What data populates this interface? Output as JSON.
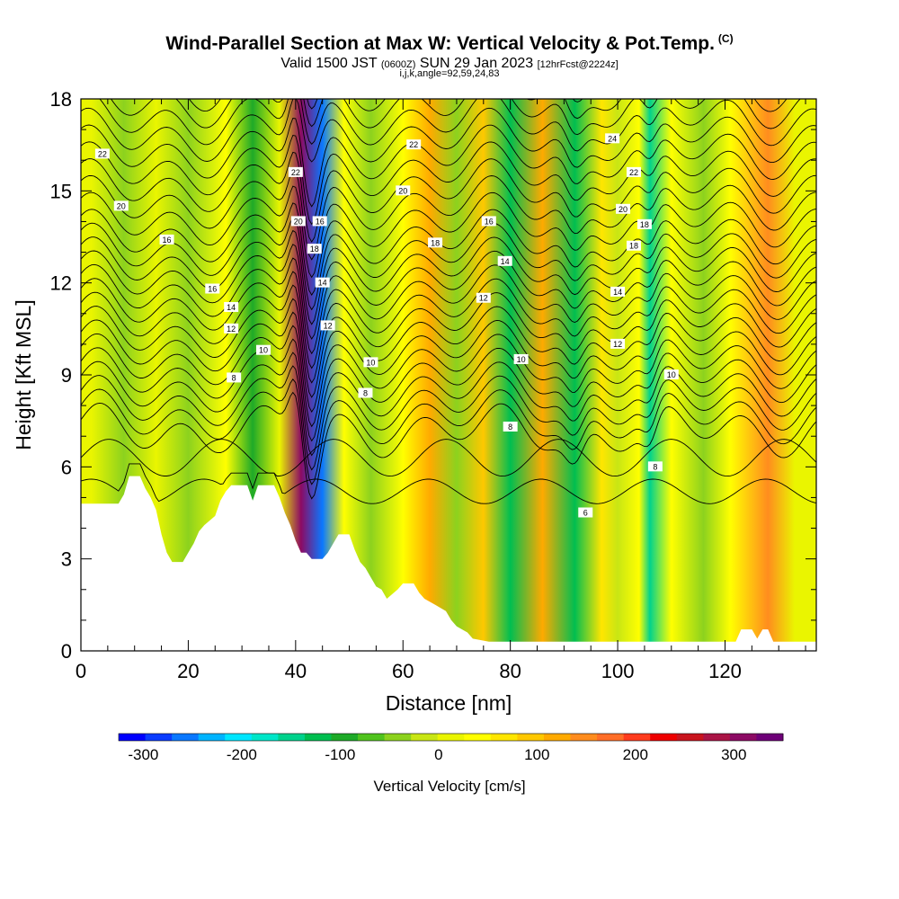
{
  "header": {
    "title": "Wind-Parallel Section at Max W: Vertical Velocity & Pot.Temp.",
    "title_tag": "(C)",
    "subtitle_main": "Valid 1500 JST",
    "subtitle_utc": "(0600Z)",
    "subtitle_date": "SUN 29 Jan 2023",
    "subtitle_fcst": "[12hrFcst@2224z]",
    "indices": "i,j,k,angle=92,59,24,83"
  },
  "chart_data": {
    "type": "heatmap",
    "title": "Wind-Parallel Section at Max W: Vertical Velocity & Pot.Temp.",
    "xlabel": "Distance [nm]",
    "ylabel": "Height [Kft MSL]",
    "xlim": [
      0,
      137
    ],
    "ylim": [
      0,
      18
    ],
    "xticks": [
      0,
      20,
      40,
      60,
      80,
      100,
      120
    ],
    "yticks": [
      0,
      3,
      6,
      9,
      12,
      15,
      18
    ],
    "colorbar": {
      "label": "Vertical Velocity [cm/s]",
      "ticks": [
        -300,
        -200,
        -100,
        0,
        100,
        200,
        300
      ],
      "range": [
        -325,
        350
      ],
      "colors": [
        "#0000ff",
        "#0a3cff",
        "#0a78ff",
        "#00b4ff",
        "#00e6ff",
        "#00e6c8",
        "#00d28c",
        "#00be50",
        "#1eaa28",
        "#50c31e",
        "#8cd21e",
        "#c8e614",
        "#eaf500",
        "#ffff00",
        "#ffe600",
        "#ffc800",
        "#ffaa00",
        "#ff8c1e",
        "#ff6e28",
        "#ff3c1e",
        "#ee0000",
        "#c8141e",
        "#aa1446",
        "#8c0a64",
        "#6e0078"
      ]
    },
    "velocity_bands": [
      {
        "x": 2,
        "w": 0
      },
      {
        "x": 8,
        "w": -40
      },
      {
        "x": 14,
        "w": 20
      },
      {
        "x": 20,
        "w": -30
      },
      {
        "x": 27,
        "w": 40
      },
      {
        "x": 32,
        "w": -90
      },
      {
        "x": 37,
        "w": 20
      },
      {
        "x": 41,
        "w": 310
      },
      {
        "x": 45,
        "w": -260
      },
      {
        "x": 49,
        "w": 30
      },
      {
        "x": 54,
        "w": -40
      },
      {
        "x": 60,
        "w": 40
      },
      {
        "x": 65,
        "w": 120
      },
      {
        "x": 70,
        "w": -50
      },
      {
        "x": 75,
        "w": 80
      },
      {
        "x": 80,
        "w": -110
      },
      {
        "x": 86,
        "w": 110
      },
      {
        "x": 92,
        "w": -130
      },
      {
        "x": 97,
        "w": 60
      },
      {
        "x": 100,
        "w": -20
      },
      {
        "x": 104,
        "w": 40
      },
      {
        "x": 106,
        "w": -150
      },
      {
        "x": 110,
        "w": 40
      },
      {
        "x": 116,
        "w": -30
      },
      {
        "x": 121,
        "w": 30
      },
      {
        "x": 128,
        "w": 140
      },
      {
        "x": 133,
        "w": 20
      }
    ],
    "terrain": [
      [
        0,
        4.8
      ],
      [
        7,
        4.8
      ],
      [
        8,
        5.1
      ],
      [
        9,
        5.7
      ],
      [
        11,
        5.7
      ],
      [
        12,
        5.3
      ],
      [
        13,
        5.0
      ],
      [
        14,
        4.6
      ],
      [
        15,
        3.8
      ],
      [
        16,
        3.2
      ],
      [
        17,
        2.9
      ],
      [
        19,
        2.9
      ],
      [
        20,
        3.2
      ],
      [
        21,
        3.5
      ],
      [
        22,
        3.9
      ],
      [
        23,
        4.1
      ],
      [
        25,
        4.4
      ],
      [
        26,
        4.9
      ],
      [
        27,
        5.2
      ],
      [
        28,
        5.4
      ],
      [
        31,
        5.4
      ],
      [
        32,
        4.9
      ],
      [
        33,
        5.4
      ],
      [
        36,
        5.4
      ],
      [
        37,
        5.0
      ],
      [
        38,
        4.5
      ],
      [
        39,
        4.1
      ],
      [
        40,
        3.6
      ],
      [
        41,
        3.2
      ],
      [
        42,
        3.2
      ],
      [
        43,
        3.0
      ],
      [
        45,
        3.0
      ],
      [
        46,
        3.2
      ],
      [
        47,
        3.5
      ],
      [
        48,
        3.8
      ],
      [
        50,
        3.8
      ],
      [
        51,
        3.3
      ],
      [
        52,
        2.9
      ],
      [
        53,
        2.7
      ],
      [
        54,
        2.4
      ],
      [
        55,
        2.1
      ],
      [
        56,
        2.0
      ],
      [
        57,
        1.7
      ],
      [
        59,
        2.0
      ],
      [
        60,
        2.2
      ],
      [
        62,
        2.2
      ],
      [
        63,
        1.9
      ],
      [
        64,
        1.7
      ],
      [
        66,
        1.5
      ],
      [
        68,
        1.3
      ],
      [
        69,
        1.0
      ],
      [
        70,
        0.8
      ],
      [
        72,
        0.6
      ],
      [
        73,
        0.4
      ],
      [
        76,
        0.3
      ],
      [
        81,
        0.3
      ],
      [
        103,
        0.3
      ],
      [
        116,
        0.3
      ],
      [
        122,
        0.3
      ],
      [
        123,
        0.7
      ],
      [
        125,
        0.7
      ],
      [
        126,
        0.4
      ],
      [
        127,
        0.7
      ],
      [
        128,
        0.7
      ],
      [
        129,
        0.3
      ],
      [
        137,
        0.3
      ]
    ],
    "isentrope_levels": [
      "8",
      "10",
      "12",
      "14",
      "16",
      "18",
      "20",
      "22",
      "24"
    ],
    "isentrope_labels": [
      "22",
      "20",
      "16",
      "16",
      "14",
      "12",
      "10",
      "8",
      "22",
      "20",
      "18",
      "16",
      "14",
      "12",
      "10",
      "8",
      "22",
      "20",
      "18",
      "16",
      "14",
      "12",
      "10",
      "8",
      "24",
      "22",
      "20",
      "18",
      "18",
      "14",
      "12",
      "10",
      "8",
      "6"
    ]
  }
}
